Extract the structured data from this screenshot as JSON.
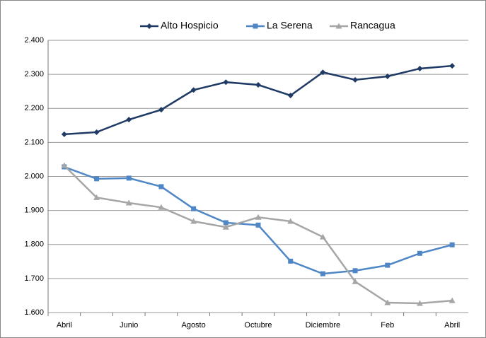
{
  "chart_data": {
    "type": "line",
    "categories": [
      "Abril",
      null,
      "Junio",
      null,
      "Agosto",
      null,
      "Octubre",
      null,
      "Diciembre",
      null,
      "Feb",
      null,
      "Abril"
    ],
    "series": [
      {
        "name": "Alto Hospicio",
        "color": "#1f3a64",
        "marker": "diamond",
        "values": [
          2124,
          2130,
          2167,
          2196,
          2254,
          2277,
          2269,
          2238,
          2306,
          2284,
          2294,
          2317,
          2325
        ]
      },
      {
        "name": "La Serena",
        "color": "#4f86c6",
        "marker": "square",
        "values": [
          2028,
          1993,
          1995,
          1970,
          1905,
          1864,
          1857,
          1751,
          1714,
          1723,
          1739,
          1774,
          1799
        ]
      },
      {
        "name": "Rancagua",
        "color": "#a6a6a6",
        "marker": "triangle",
        "values": [
          2032,
          1938,
          1922,
          1909,
          1868,
          1851,
          1880,
          1868,
          1822,
          1691,
          1629,
          1627,
          1635
        ]
      }
    ],
    "ylim": [
      1600,
      2400
    ],
    "yticks": [
      {
        "value": 1600,
        "label": "1.600"
      },
      {
        "value": 1700,
        "label": "1.700"
      },
      {
        "value": 1800,
        "label": "1.800"
      },
      {
        "value": 1900,
        "label": "1.900"
      },
      {
        "value": 2000,
        "label": "2.000"
      },
      {
        "value": 2100,
        "label": "2.100"
      },
      {
        "value": 2200,
        "label": "2.200"
      },
      {
        "value": 2300,
        "label": "2.300"
      },
      {
        "value": 2400,
        "label": "2.400"
      }
    ],
    "grid": true,
    "legend": "top"
  }
}
